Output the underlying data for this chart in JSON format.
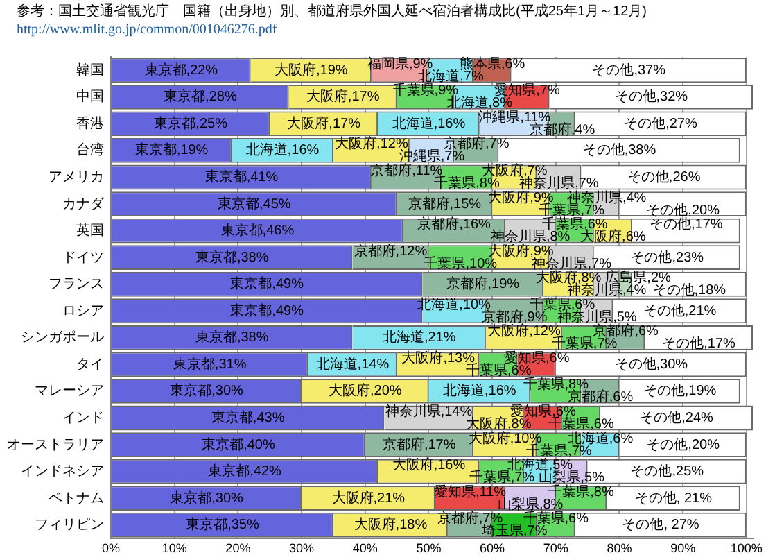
{
  "chart_data": {
    "type": "bar",
    "orientation": "horizontal",
    "stacked": true,
    "title": "参考：国土交通省観光庁　国籍（出身地）別、都道府県外国人延べ宿泊者構成比(平成25年1月～12月)",
    "annotations": [
      "http://www.mlit.go.jp/common/001046276.pdf"
    ],
    "categories": [
      "韓国",
      "中国",
      "香港",
      "台湾",
      "アメリカ",
      "カナダ",
      "英国",
      "ドイツ",
      "フランス",
      "ロシア",
      "シンガポール",
      "タイ",
      "マレーシア",
      "インド",
      "オーストラリア",
      "インドネシア",
      "ベトナム",
      "フィリピン"
    ],
    "series": [
      {
        "color": "#6464dc",
        "values": [
          22,
          28,
          25,
          19,
          41,
          45,
          46,
          38,
          49,
          49,
          38,
          31,
          30,
          43,
          40,
          42,
          30,
          35
        ],
        "value_labels": [
          "東京都,22%",
          "東京都,28%",
          "東京都,25%",
          "東京都,19%",
          "東京都,41%",
          "東京都,45%",
          "東京都,46%",
          "東京都,38%",
          "東京都,49%",
          "東京都,49%",
          "東京都,38%",
          "東京都,31%",
          "東京都,30%",
          "東京都,43%",
          "東京都,40%",
          "東京都,42%",
          "東京都,30%",
          "東京都,35%"
        ]
      },
      {
        "values": [
          19,
          17,
          17,
          16,
          11,
          15,
          16,
          12,
          19,
          10,
          21,
          14,
          20,
          14,
          17,
          16,
          21,
          18
        ],
        "colors": [
          "#f5ec6e",
          "#f5ec6e",
          "#f5ec6e",
          "#84e4f0",
          "#8fb8a0",
          "#8fb8a0",
          "#8fb8a0",
          "#8fb8a0",
          "#8fb8a0",
          "#84e4f0",
          "#84e4f0",
          "#84e4f0",
          "#f5ec6e",
          "#d4d4d4",
          "#8fb8a0",
          "#f5ec6e",
          "#f5ec6e",
          "#f5ec6e"
        ],
        "value_labels": [
          "大阪府,19%",
          "大阪府,17%",
          "大阪府,17%",
          "北海道,16%",
          "京都府,11%",
          "京都府,15%",
          "京都府,16%",
          "京都府,12%",
          "京都府,19%",
          "北海道,10%",
          "北海道,21%",
          "北海道,14%",
          "大阪府,20%",
          "神奈川県,14%",
          "京都府,17%",
          "大阪府,16%",
          "大阪府,21%",
          "大阪府,18%"
        ]
      },
      {
        "values": [
          9,
          9,
          16,
          12,
          8,
          9,
          8,
          10,
          8,
          9,
          12,
          13,
          16,
          8,
          10,
          7,
          11,
          7
        ],
        "colors": [
          "#f0a0a0",
          "#66d866",
          "#84e4f0",
          "#f5ec6e",
          "#66d866",
          "#f5ec6e",
          "#d4d4d4",
          "#66d866",
          "#f5ec6e",
          "#8fb8a0",
          "#f5ec6e",
          "#f5ec6e",
          "#84e4f0",
          "#f5ec6e",
          "#f5ec6e",
          "#66d866",
          "#e84848",
          "#8fb8a0"
        ],
        "value_labels": [
          "福岡県,9%",
          "千葉県,9%",
          "北海道,16%",
          "大阪府,12%",
          "千葉県,8%",
          "大阪府,9%",
          "神奈川県,8%",
          "千葉県,10%",
          "大阪府,8%",
          "京都府,9%",
          "大阪府,12%",
          "大阪府,13%",
          "北海道,16%",
          "大阪府,8%",
          "大阪府,10%",
          "千葉県,7%",
          "愛知県,11%",
          "京都府,7%"
        ]
      },
      {
        "values": [
          7,
          8,
          11,
          7,
          7,
          7,
          6,
          9,
          4,
          6,
          7,
          6,
          8,
          6,
          7,
          5,
          8,
          7
        ],
        "colors": [
          "#84e4f0",
          "#84e4f0",
          "#c8e0f8",
          "#c8e0f8",
          "#f5ec6e",
          "#66d866",
          "#66d866",
          "#f5ec6e",
          "#d4d4d4",
          "#66d866",
          "#66d866",
          "#66d866",
          "#66d866",
          "#e84848",
          "#66d866",
          "#84e4f0",
          "#d8c8f0",
          "#22c022"
        ],
        "value_labels": [
          "北海道,7%",
          "北海道,8%",
          "沖縄県,11%",
          "沖縄県,7%",
          "大阪府,7%",
          "千葉県,7%",
          "千葉県,6%",
          "大阪府,9%",
          "神奈川県,4%",
          "千葉県,6%",
          "千葉県,7%",
          "千葉県,6%",
          "千葉県,8%",
          "愛知県,6%",
          "千葉県,7%",
          "北海道,5%",
          "山梨県,8%",
          "埼玉県,7%"
        ]
      },
      {
        "values": [
          6,
          7,
          4,
          7,
          7,
          4,
          6,
          7,
          2,
          5,
          6,
          6,
          6,
          6,
          6,
          5,
          8,
          6
        ],
        "colors": [
          "#c06050",
          "#e84848",
          "#8fb8a0",
          "#8fb8a0",
          "#d4d4d4",
          "#d4d4d4",
          "#f5ec6e",
          "#d4d4d4",
          "#b8d8b8",
          "#d4d4d4",
          "#8fb8a0",
          "#e84848",
          "#8fb8a0",
          "#66d866",
          "#84e4f0",
          "#d8c8f0",
          "#66d866",
          "#66d866"
        ],
        "value_labels": [
          "熊本県,6%",
          "愛知県,7%",
          "京都府,4%",
          "京都府,7%",
          "神奈川県,7%",
          "神奈川県,4%",
          "大阪府,6%",
          "神奈川県,7%",
          "広島県,2%",
          "神奈川県,5%",
          "京都府,6%",
          "愛知県,6%",
          "京都府,6%",
          "千葉県,6%",
          "北海道,6%",
          "山梨県,5%",
          "千葉県,8%",
          "千葉県,6%"
        ]
      },
      {
        "color": "#ffffff",
        "values": [
          37,
          32,
          27,
          38,
          26,
          20,
          17,
          23,
          18,
          21,
          17,
          30,
          19,
          24,
          20,
          25,
          21,
          27
        ],
        "value_labels": [
          "その他,37%",
          "その他,32%",
          "その他,27%",
          "その他,38%",
          "その他,26%",
          "その他,20%",
          "その他,17%",
          "その他,23%",
          "その他,18%",
          "その他,21%",
          "その他,17%",
          "その他,30%",
          "その他,19%",
          "その他,24%",
          "その他,20%",
          "その他,25%",
          "その他, 21%",
          "その他, 27%"
        ]
      }
    ],
    "xlim": [
      0,
      101
    ],
    "xticks": [
      {
        "value": 0,
        "label": "0%"
      },
      {
        "value": 10,
        "label": "10%"
      },
      {
        "value": 20,
        "label": "20%"
      },
      {
        "value": 30,
        "label": "30%"
      },
      {
        "value": 40,
        "label": "40%"
      },
      {
        "value": 50,
        "label": "50%"
      },
      {
        "value": 60,
        "label": "60%"
      },
      {
        "value": 70,
        "label": "70%"
      },
      {
        "value": 80,
        "label": "80%"
      },
      {
        "value": 90,
        "label": "90%"
      },
      {
        "value": 100,
        "label": "100%"
      }
    ],
    "grid": "x"
  }
}
